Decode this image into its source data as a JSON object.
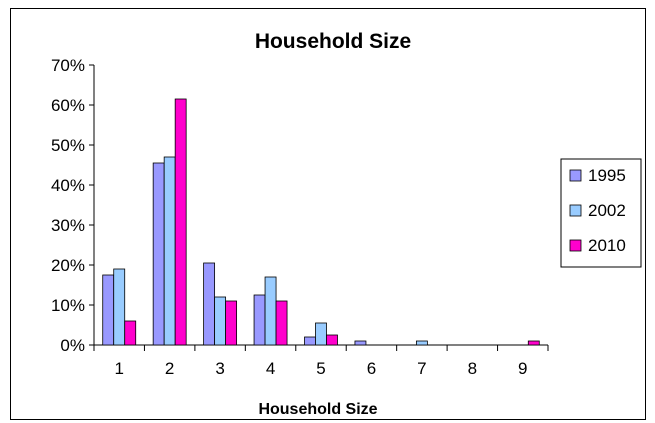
{
  "chart_data": {
    "type": "bar",
    "title": "Household Size",
    "xlabel": "Household Size",
    "ylabel": "",
    "categories": [
      "1",
      "2",
      "3",
      "4",
      "5",
      "6",
      "7",
      "8",
      "9"
    ],
    "series": [
      {
        "name": "1995",
        "color": "#9999ff",
        "values": [
          17.5,
          45.5,
          20.5,
          12.5,
          2.0,
          1.0,
          0,
          0,
          0
        ]
      },
      {
        "name": "2002",
        "color": "#99ccff",
        "values": [
          19.0,
          47.0,
          12.0,
          17.0,
          5.5,
          0,
          1.0,
          0,
          0
        ]
      },
      {
        "name": "2010",
        "color": "#ff00cc",
        "values": [
          6.0,
          61.5,
          11.0,
          11.0,
          2.5,
          0,
          0,
          0,
          1.0
        ]
      }
    ],
    "ylim": [
      0,
      70
    ],
    "yticks": [
      "0%",
      "10%",
      "20%",
      "30%",
      "40%",
      "50%",
      "60%",
      "70%"
    ],
    "grid": false,
    "legend_position": "right"
  }
}
